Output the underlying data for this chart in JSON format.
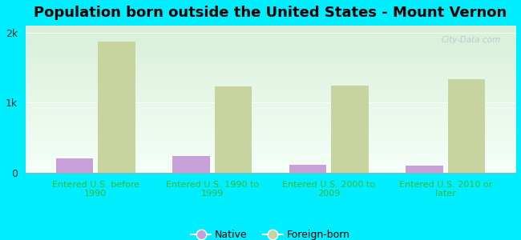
{
  "title": "Population born outside the United States - Mount Vernon",
  "categories": [
    "Entered U.S. before\n1990",
    "Entered U.S. 1990 to\n1999",
    "Entered U.S. 2000 to\n2009",
    "Entered U.S. 2010 or\nlater"
  ],
  "native_values": [
    200,
    240,
    115,
    100
  ],
  "foreign_values": [
    1870,
    1230,
    1240,
    1340
  ],
  "native_color": "#c8a0d8",
  "foreign_color": "#c8d4a0",
  "background_color": "#00eeff",
  "plot_bg_top": "#d8f0d8",
  "plot_bg_bottom": "#f5fff8",
  "yticks": [
    0,
    1000,
    2000
  ],
  "ytick_labels": [
    "0",
    "1k",
    "2k"
  ],
  "ylim": [
    0,
    2100
  ],
  "bar_width": 0.32,
  "title_fontsize": 13,
  "xtick_color": "#33bb33",
  "ytick_color": "#333333",
  "watermark": "City-Data.com",
  "legend_native": "Native",
  "legend_foreign": "Foreign-born"
}
